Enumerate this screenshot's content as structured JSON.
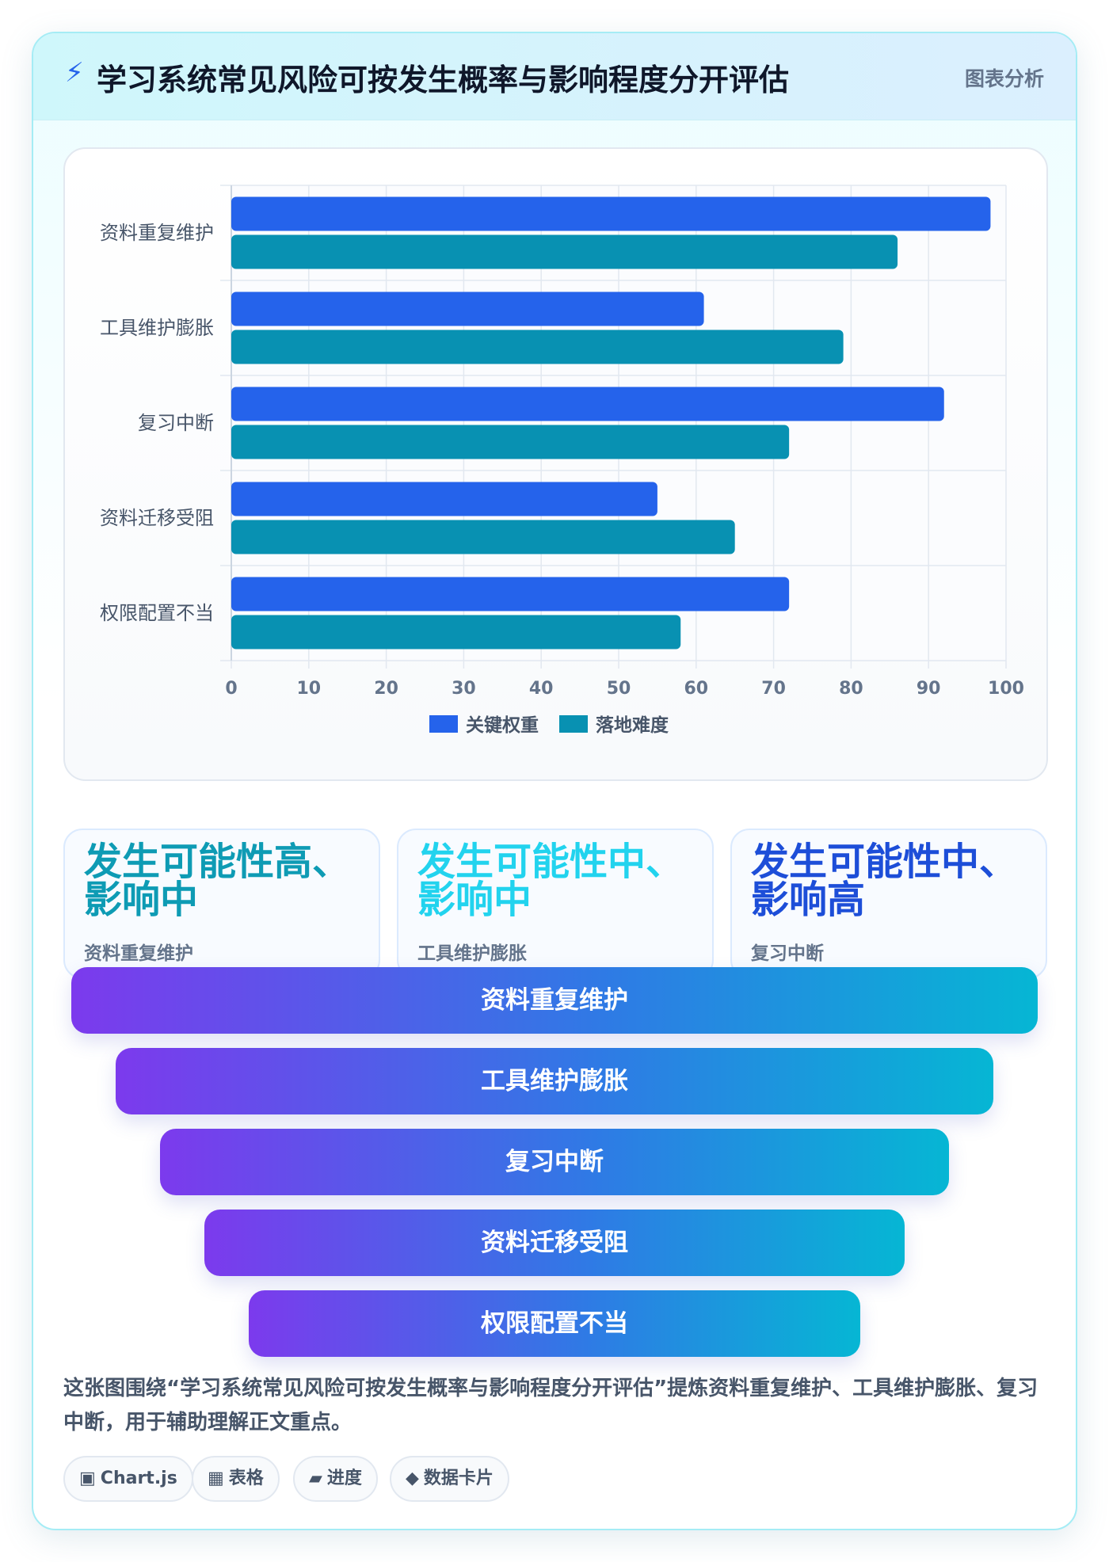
{
  "header": {
    "icon": "lightning-icon",
    "title": "学习系统常见风险可按发生概率与影响程度分开评估",
    "tag": "图表分析"
  },
  "chart_data": {
    "type": "bar",
    "orientation": "horizontal",
    "categories": [
      "资料重复维护",
      "工具维护膨胀",
      "复习中断",
      "资料迁移受阻",
      "权限配置不当"
    ],
    "series": [
      {
        "name": "关键权重",
        "values": [
          98,
          61,
          92,
          55,
          72
        ],
        "color": "#2563eb"
      },
      {
        "name": "落地难度",
        "values": [
          86,
          79,
          72,
          65,
          58
        ],
        "color": "#0891b2"
      }
    ],
    "xlim": [
      0,
      100
    ],
    "xticks": [
      "0",
      "10",
      "20",
      "30",
      "40",
      "50",
      "60",
      "70",
      "80",
      "90",
      "100"
    ],
    "grid": true,
    "legend": "bottom"
  },
  "stats": [
    {
      "value": "发生可能性高、影响中",
      "label": "资料重复维护",
      "color": "#0e9bb4"
    },
    {
      "value": "发生可能性中、影响中",
      "label": "工具维护膨胀",
      "color": "#22d3ee"
    },
    {
      "value": "发生可能性中、影响高",
      "label": "复习中断",
      "color": "#1d4ed8"
    }
  ],
  "funnel": [
    "资料重复维护",
    "工具维护膨胀",
    "复习中断",
    "资料迁移受阻",
    "权限配置不当"
  ],
  "description": "这张图围绕“学习系统常见风险可按发生概率与影响程度分开评估”提炼资料重复维护、工具维护膨胀、复习中断，用于辅助理解正文重点。",
  "pills": [
    {
      "glyph": "▣",
      "label": "Chart.js",
      "icon": "chart-icon"
    },
    {
      "glyph": "▦",
      "label": "表格",
      "icon": "table-icon"
    },
    {
      "glyph": "▰",
      "label": "进度",
      "icon": "progress-icon"
    },
    {
      "glyph": "◆",
      "label": "数据卡片",
      "icon": "diamond-icon"
    }
  ]
}
